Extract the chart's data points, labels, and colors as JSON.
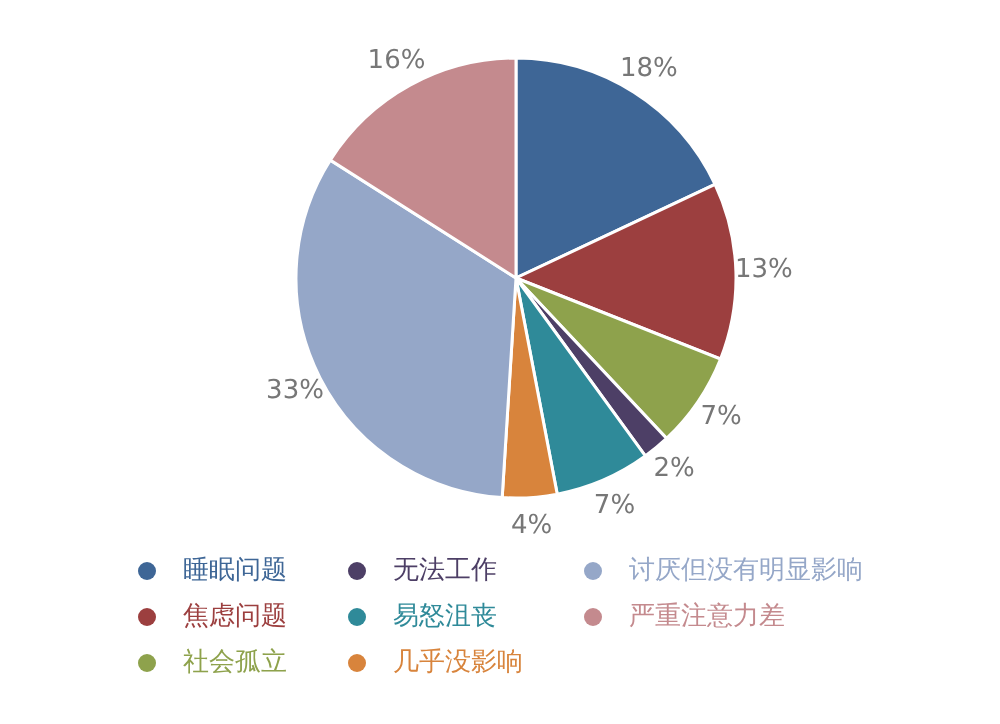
{
  "chart_data": {
    "type": "pie",
    "categories": [
      "睡眠问题",
      "焦虑问题",
      "社会孤立",
      "无法工作",
      "易怒沮丧",
      "几乎没影响",
      "讨厌但没有明显影响",
      "严重注意力差"
    ],
    "values": [
      18,
      13,
      7,
      2,
      7,
      4,
      33,
      16
    ],
    "colors": [
      "#3e6696",
      "#9c3f3f",
      "#8ea24c",
      "#4d3f66",
      "#2f8a99",
      "#d8843c",
      "#95a7c8",
      "#c48a8e"
    ],
    "value_labels": [
      "18%",
      "13%",
      "7%",
      "2%",
      "7%",
      "4%",
      "33%",
      "16%"
    ],
    "legend": "bottom"
  }
}
